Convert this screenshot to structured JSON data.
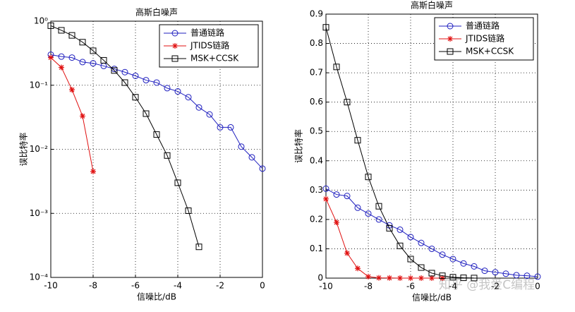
{
  "chart_data": [
    {
      "type": "line",
      "title": "高斯白噪声",
      "xlabel": "信噪比/dB",
      "ylabel": "误比特率",
      "yscale": "log",
      "grid": true,
      "legend": "upper right",
      "x": [
        -10,
        -9.5,
        -9,
        -8.5,
        -8,
        -7.5,
        -7,
        -6.5,
        -6,
        -5.5,
        -5,
        -4.5,
        -4,
        -3.5,
        -3,
        -2.5,
        -2,
        -1.5,
        -1,
        -0.5,
        0
      ],
      "xlim": [
        -10,
        0
      ],
      "xticks": [
        -10,
        -8,
        -6,
        -4,
        -2,
        0
      ],
      "ylim": [
        0.0001,
        1
      ],
      "yticks": [
        {
          "value": 1,
          "label": "10⁰"
        },
        {
          "value": 0.1,
          "label": "10⁻¹"
        },
        {
          "value": 0.01,
          "label": "10⁻²"
        },
        {
          "value": 0.001,
          "label": "10⁻³"
        },
        {
          "value": 0.0001,
          "label": "10⁻⁴"
        }
      ],
      "series": [
        {
          "name": "普通链路",
          "color": "#1f1fbf",
          "marker": "circle",
          "values": [
            0.3,
            0.28,
            0.27,
            0.23,
            0.22,
            0.2,
            0.18,
            0.16,
            0.14,
            0.12,
            0.11,
            0.09,
            0.08,
            0.065,
            0.045,
            0.035,
            0.022,
            0.022,
            0.011,
            0.0075,
            0.005
          ]
        },
        {
          "name": "JTIDS链路",
          "color": "#e01010",
          "marker": "star",
          "values": [
            0.27,
            0.19,
            0.085,
            0.033,
            0.0045,
            null,
            null,
            null,
            null,
            null,
            null,
            null,
            null,
            null,
            null,
            null,
            null,
            null,
            null,
            null,
            null
          ]
        },
        {
          "name": "MSK+CCSK",
          "color": "#000000",
          "marker": "square",
          "values": [
            0.85,
            0.72,
            0.6,
            0.47,
            0.345,
            0.245,
            0.17,
            0.11,
            0.065,
            0.036,
            0.017,
            0.008,
            0.003,
            0.0011,
            0.0003,
            null,
            null,
            null,
            null,
            null,
            null
          ]
        }
      ]
    },
    {
      "type": "line",
      "title": "高斯白噪声",
      "xlabel": "信噪比/dB",
      "ylabel": "误比特率",
      "yscale": "linear",
      "grid": true,
      "legend": "upper right",
      "x": [
        -10,
        -9.5,
        -9,
        -8.5,
        -8,
        -7.5,
        -7,
        -6.5,
        -6,
        -5.5,
        -5,
        -4.5,
        -4,
        -3.5,
        -3,
        -2.5,
        -2,
        -1.5,
        -1,
        -0.5,
        0
      ],
      "xlim": [
        -10,
        0
      ],
      "xticks": [
        -10,
        -8,
        -6,
        -4,
        -2,
        0
      ],
      "ylim": [
        0,
        0.9
      ],
      "yticks": [
        0,
        0.1,
        0.2,
        0.3,
        0.4,
        0.5,
        0.6,
        0.7,
        0.8,
        0.9
      ],
      "series": [
        {
          "name": "普通链路",
          "color": "#1f1fbf",
          "marker": "circle",
          "values": [
            0.305,
            0.285,
            0.28,
            0.24,
            0.22,
            0.2,
            0.18,
            0.165,
            0.14,
            0.12,
            0.1,
            0.08,
            0.065,
            0.05,
            0.04,
            0.025,
            0.02,
            0.015,
            0.01,
            0.008,
            0.005
          ]
        },
        {
          "name": "JTIDS链路",
          "color": "#e01010",
          "marker": "star",
          "values": [
            0.27,
            0.19,
            0.085,
            0.033,
            0.005,
            0.001,
            0.0005,
            0,
            0,
            0,
            0,
            0,
            null,
            null,
            null,
            null,
            null,
            null,
            null,
            null,
            null
          ]
        },
        {
          "name": "MSK+CCSK",
          "color": "#000000",
          "marker": "square",
          "values": [
            0.855,
            0.72,
            0.6,
            0.47,
            0.345,
            0.245,
            0.17,
            0.11,
            0.065,
            0.036,
            0.017,
            0.008,
            0.003,
            0.0011,
            0.0003,
            null,
            null,
            null,
            null,
            null,
            null
          ]
        }
      ]
    }
  ],
  "watermark": "知乎 @我爱C编程"
}
